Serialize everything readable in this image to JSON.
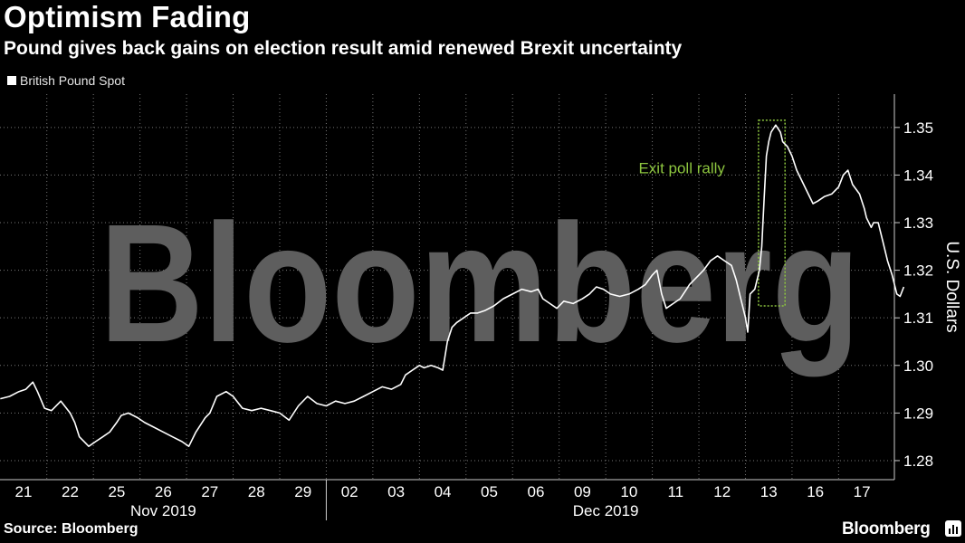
{
  "header": {
    "title": "Optimism Fading",
    "subtitle": "Pound gives back gains on election result amid renewed Brexit uncertainty"
  },
  "footer": {
    "source": "Source: Bloomberg",
    "brand": "Bloomberg"
  },
  "watermark": "Bloomberg",
  "colors": {
    "background": "#000000",
    "line": "#ffffff",
    "annotation": "#8dc63f",
    "grid": "#777777"
  },
  "chart_data": {
    "type": "line",
    "title": "Optimism Fading",
    "subtitle": "Pound gives back gains on election result amid renewed Brexit uncertainty",
    "ylabel": "U.S. Dollars",
    "ylim": [
      1.276,
      1.357
    ],
    "yticks": [
      "1.35",
      "1.34",
      "1.33",
      "1.32",
      "1.31",
      "1.30",
      "1.29",
      "1.28"
    ],
    "y_axis_side": "right",
    "grid": "dotted vertical and horizontal",
    "legend": {
      "placement": "top-left",
      "entries": [
        "British Pound Spot"
      ]
    },
    "x_categories": [
      "21",
      "22",
      "25",
      "26",
      "27",
      "28",
      "29",
      "02",
      "03",
      "04",
      "05",
      "06",
      "09",
      "10",
      "11",
      "12",
      "13",
      "16",
      "17"
    ],
    "x_groups": [
      {
        "label": "Nov 2019",
        "from": 0,
        "to": 6
      },
      {
        "label": "Dec 2019",
        "from": 7,
        "to": 18
      }
    ],
    "annotation": {
      "label": "Exit poll rally",
      "x_from": 15.78,
      "x_to": 16.35,
      "y_from": 1.3125,
      "y_to": 1.3515
    },
    "series": [
      {
        "name": "British Pound Spot",
        "points": [
          [
            -0.5,
            1.293
          ],
          [
            -0.3,
            1.2935
          ],
          [
            -0.1,
            1.2945
          ],
          [
            0.05,
            1.295
          ],
          [
            0.2,
            1.2965
          ],
          [
            0.3,
            1.2945
          ],
          [
            0.45,
            1.291
          ],
          [
            0.6,
            1.2905
          ],
          [
            0.8,
            1.2925
          ],
          [
            1.0,
            1.29
          ],
          [
            1.1,
            1.288
          ],
          [
            1.2,
            1.285
          ],
          [
            1.3,
            1.284
          ],
          [
            1.4,
            1.283
          ],
          [
            1.55,
            1.284
          ],
          [
            1.7,
            1.285
          ],
          [
            1.85,
            1.286
          ],
          [
            2.0,
            1.288
          ],
          [
            2.1,
            1.2895
          ],
          [
            2.25,
            1.29
          ],
          [
            2.45,
            1.289
          ],
          [
            2.6,
            1.288
          ],
          [
            2.8,
            1.287
          ],
          [
            3.0,
            1.286
          ],
          [
            3.2,
            1.285
          ],
          [
            3.4,
            1.284
          ],
          [
            3.55,
            1.283
          ],
          [
            3.7,
            1.286
          ],
          [
            3.9,
            1.289
          ],
          [
            4.0,
            1.29
          ],
          [
            4.15,
            1.2935
          ],
          [
            4.35,
            1.2945
          ],
          [
            4.5,
            1.2935
          ],
          [
            4.7,
            1.291
          ],
          [
            4.9,
            1.2905
          ],
          [
            5.1,
            1.291
          ],
          [
            5.3,
            1.2905
          ],
          [
            5.5,
            1.29
          ],
          [
            5.7,
            1.2885
          ],
          [
            5.9,
            1.2915
          ],
          [
            6.1,
            1.2935
          ],
          [
            6.3,
            1.292
          ],
          [
            6.5,
            1.2915
          ],
          [
            6.7,
            1.2925
          ],
          [
            6.9,
            1.292
          ],
          [
            7.1,
            1.2925
          ],
          [
            7.3,
            1.2935
          ],
          [
            7.5,
            1.2945
          ],
          [
            7.7,
            1.2955
          ],
          [
            7.9,
            1.295
          ],
          [
            8.1,
            1.296
          ],
          [
            8.2,
            1.298
          ],
          [
            8.35,
            1.299
          ],
          [
            8.5,
            1.3
          ],
          [
            8.6,
            1.2995
          ],
          [
            8.75,
            1.3
          ],
          [
            8.9,
            1.2995
          ],
          [
            9.0,
            1.299
          ],
          [
            9.1,
            1.305
          ],
          [
            9.2,
            1.308
          ],
          [
            9.3,
            1.309
          ],
          [
            9.45,
            1.31
          ],
          [
            9.6,
            1.311
          ],
          [
            9.75,
            1.311
          ],
          [
            9.9,
            1.3115
          ],
          [
            10.1,
            1.3125
          ],
          [
            10.3,
            1.314
          ],
          [
            10.5,
            1.315
          ],
          [
            10.7,
            1.316
          ],
          [
            10.9,
            1.3155
          ],
          [
            11.05,
            1.316
          ],
          [
            11.15,
            1.314
          ],
          [
            11.3,
            1.313
          ],
          [
            11.45,
            1.312
          ],
          [
            11.6,
            1.3135
          ],
          [
            11.8,
            1.313
          ],
          [
            12.0,
            1.314
          ],
          [
            12.15,
            1.315
          ],
          [
            12.3,
            1.3165
          ],
          [
            12.45,
            1.316
          ],
          [
            12.6,
            1.315
          ],
          [
            12.8,
            1.3145
          ],
          [
            13.0,
            1.315
          ],
          [
            13.2,
            1.316
          ],
          [
            13.35,
            1.317
          ],
          [
            13.5,
            1.319
          ],
          [
            13.6,
            1.32
          ],
          [
            13.7,
            1.315
          ],
          [
            13.8,
            1.312
          ],
          [
            13.95,
            1.313
          ],
          [
            14.1,
            1.314
          ],
          [
            14.2,
            1.3155
          ],
          [
            14.3,
            1.317
          ],
          [
            14.5,
            1.319
          ],
          [
            14.6,
            1.32
          ],
          [
            14.75,
            1.322
          ],
          [
            14.9,
            1.323
          ],
          [
            15.05,
            1.322
          ],
          [
            15.2,
            1.321
          ],
          [
            15.3,
            1.318
          ],
          [
            15.4,
            1.314
          ],
          [
            15.5,
            1.31
          ],
          [
            15.55,
            1.307
          ],
          [
            15.6,
            1.315
          ],
          [
            15.7,
            1.316
          ],
          [
            15.8,
            1.32
          ],
          [
            15.85,
            1.325
          ],
          [
            15.9,
            1.335
          ],
          [
            15.95,
            1.344
          ],
          [
            16.0,
            1.347
          ],
          [
            16.05,
            1.349
          ],
          [
            16.15,
            1.3505
          ],
          [
            16.25,
            1.349
          ],
          [
            16.3,
            1.347
          ],
          [
            16.4,
            1.346
          ],
          [
            16.5,
            1.344
          ],
          [
            16.6,
            1.341
          ],
          [
            16.75,
            1.338
          ],
          [
            16.85,
            1.336
          ],
          [
            16.95,
            1.334
          ],
          [
            17.05,
            1.3345
          ],
          [
            17.2,
            1.3355
          ],
          [
            17.35,
            1.336
          ],
          [
            17.5,
            1.3375
          ],
          [
            17.6,
            1.34
          ],
          [
            17.7,
            1.341
          ],
          [
            17.8,
            1.338
          ],
          [
            17.95,
            1.336
          ],
          [
            18.05,
            1.333
          ],
          [
            18.1,
            1.331
          ],
          [
            18.2,
            1.329
          ],
          [
            18.25,
            1.33
          ],
          [
            18.35,
            1.33
          ],
          [
            18.45,
            1.326
          ],
          [
            18.55,
            1.322
          ],
          [
            18.65,
            1.319
          ],
          [
            18.75,
            1.315
          ],
          [
            18.82,
            1.3145
          ],
          [
            18.9,
            1.3165
          ]
        ]
      }
    ]
  }
}
